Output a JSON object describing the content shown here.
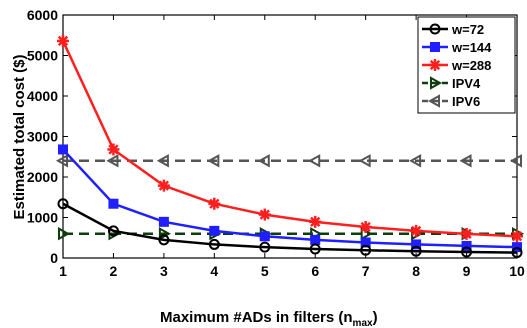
{
  "chart_data": {
    "type": "line",
    "xlabel": "Maximum  #ADs in filters (n",
    "xlabel_sub": "max",
    "xlabel_close": ")",
    "ylabel": "Estimated total cost ($)",
    "xlim": [
      1,
      10
    ],
    "ylim": [
      0,
      6000
    ],
    "grid": false,
    "legend_placement": "top-right",
    "x": [
      1,
      2,
      3,
      4,
      5,
      6,
      7,
      8,
      9,
      10
    ],
    "x_ticks": [
      "1",
      "2",
      "3",
      "4",
      "5",
      "6",
      "7",
      "8",
      "9",
      "10"
    ],
    "y_ticks": [
      "0",
      "1000",
      "2000",
      "3000",
      "4000",
      "5000",
      "6000"
    ],
    "y_tick_values": [
      0,
      1000,
      2000,
      3000,
      4000,
      5000,
      6000
    ],
    "series": [
      {
        "name": "w=72",
        "color": "#000000",
        "marker": "circle",
        "dash": "solid",
        "values": [
          1340,
          670,
          447,
          335,
          268,
          223,
          191,
          168,
          149,
          134
        ]
      },
      {
        "name": "w=144",
        "color": "#1f1fff",
        "marker": "square",
        "dash": "solid",
        "values": [
          2680,
          1340,
          893,
          670,
          536,
          447,
          383,
          335,
          298,
          268
        ]
      },
      {
        "name": "w=288",
        "color": "#ff1f1f",
        "marker": "asterisk",
        "dash": "solid",
        "values": [
          5360,
          2680,
          1787,
          1340,
          1072,
          893,
          766,
          670,
          596,
          536
        ]
      },
      {
        "name": "IPV4",
        "color": "#0d3d0d",
        "marker": "triangle-right",
        "dash": "dashed",
        "values": [
          600,
          600,
          600,
          600,
          600,
          600,
          600,
          600,
          600,
          600
        ]
      },
      {
        "name": "IPV6",
        "color": "#555555",
        "marker": "triangle-left",
        "dash": "dashed",
        "values": [
          2400,
          2400,
          2400,
          2400,
          2400,
          2400,
          2400,
          2400,
          2400,
          2400
        ]
      }
    ]
  }
}
